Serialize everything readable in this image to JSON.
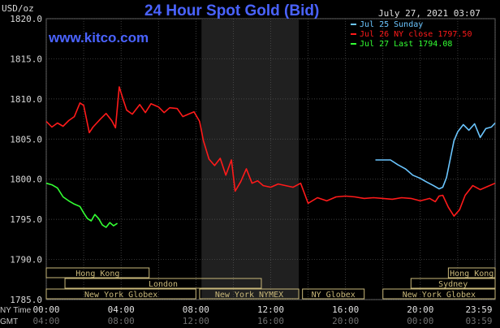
{
  "header": {
    "units_label": "USD/oz",
    "title": "24 Hour Spot Gold (Bid)",
    "date": "July 27, 2021 03:07",
    "website": "www.kitco.com"
  },
  "legend": [
    {
      "label": "Jul 25 Sunday",
      "color": "#6bc6ff"
    },
    {
      "label": "Jul 26 NY close 1797.50",
      "color": "#ff1a1a"
    },
    {
      "label": "Jul 27 Last 1794.08",
      "color": "#33ff33"
    }
  ],
  "axis_labels": {
    "ny_time": "NY Time",
    "gmt": "GMT"
  },
  "markets": [
    {
      "label": "Hong Kong",
      "row": 0,
      "from_h": 0,
      "to_h": 5.5
    },
    {
      "label": "Hong Kong",
      "row": 0,
      "from_h": 21.5,
      "to_h": 24
    },
    {
      "label": "London",
      "row": 1,
      "from_h": 1,
      "to_h": 11.5
    },
    {
      "label": "Sydney",
      "row": 1,
      "from_h": 19.5,
      "to_h": 24
    },
    {
      "label": "New York Globex",
      "row": 2,
      "from_h": 0,
      "to_h": 8
    },
    {
      "label": "New York NYMEX",
      "row": 2,
      "from_h": 8.2,
      "to_h": 13.5
    },
    {
      "label": "NY Globex",
      "row": 2,
      "from_h": 13.7,
      "to_h": 17
    },
    {
      "label": "New York Globex",
      "row": 2,
      "from_h": 18,
      "to_h": 24
    }
  ],
  "chart_data": {
    "type": "line",
    "title": "24 Hour Spot Gold (Bid)",
    "ylabel": "USD/oz",
    "xlabel": "NY Time",
    "ylim": [
      1785,
      1820
    ],
    "xlim_hours": [
      0,
      24
    ],
    "y_ticks": [
      "1820.0",
      "1815.0",
      "1810.0",
      "1805.0",
      "1800.0",
      "1795.0",
      "1790.0",
      "1785.0"
    ],
    "y_tick_values": [
      1820,
      1815,
      1810,
      1805,
      1800,
      1795,
      1790,
      1785
    ],
    "x_ticks": [
      {
        "hour": 0,
        "ny": "00:00",
        "gmt": "04:00"
      },
      {
        "hour": 4,
        "ny": "04:00",
        "gmt": "08:00"
      },
      {
        "hour": 8,
        "ny": "08:00",
        "gmt": "12:00"
      },
      {
        "hour": 12,
        "ny": "12:00",
        "gmt": "16:00"
      },
      {
        "hour": 16,
        "ny": "16:00",
        "gmt": "20:00"
      },
      {
        "hour": 20,
        "ny": "20:00",
        "gmt": "00:00"
      },
      {
        "hour": 24,
        "ny": "23:59",
        "gmt": "03:59"
      }
    ],
    "shaded_region_hours": [
      8.3,
      13.5
    ],
    "grid": true,
    "series": [
      {
        "name": "Jul 25 Sunday",
        "color": "#6bc6ff",
        "hours": [
          17.6,
          18.4,
          18.8,
          19.2,
          19.6,
          20.0,
          20.3,
          20.7,
          21.0,
          21.2,
          21.4,
          21.6,
          21.8,
          22.0,
          22.3,
          22.6,
          22.9,
          23.2,
          23.5,
          23.8,
          24.0
        ],
        "values": [
          1802.4,
          1802.4,
          1801.8,
          1801.3,
          1800.5,
          1800.1,
          1799.7,
          1799.2,
          1798.8,
          1799.0,
          1800.2,
          1802.5,
          1804.8,
          1805.9,
          1806.8,
          1806.1,
          1806.9,
          1805.2,
          1806.3,
          1806.5,
          1807.0
        ]
      },
      {
        "name": "Jul 26 NY close 1797.50",
        "color": "#ff1a1a",
        "hours": [
          0.0,
          0.3,
          0.6,
          0.9,
          1.2,
          1.5,
          1.8,
          2.0,
          2.3,
          2.5,
          2.7,
          2.9,
          3.2,
          3.5,
          3.7,
          3.9,
          4.1,
          4.3,
          4.6,
          5.0,
          5.3,
          5.6,
          6.0,
          6.3,
          6.6,
          7.0,
          7.3,
          7.6,
          7.9,
          8.2,
          8.4,
          8.7,
          9.0,
          9.3,
          9.6,
          9.9,
          10.1,
          10.4,
          10.7,
          11.0,
          11.3,
          11.6,
          12.0,
          12.4,
          12.8,
          13.2,
          13.6,
          14.0,
          14.5,
          15.0,
          15.5,
          16.0,
          16.5,
          17.0,
          17.5,
          18.0,
          18.5,
          19.0,
          19.5,
          20.0,
          20.5,
          20.8,
          21.0,
          21.2,
          21.5,
          21.8,
          22.1,
          22.4,
          22.8,
          23.2,
          23.6,
          24.0
        ],
        "values": [
          1807.2,
          1806.5,
          1807.0,
          1806.6,
          1807.3,
          1807.8,
          1809.5,
          1809.2,
          1805.8,
          1806.5,
          1807.0,
          1807.5,
          1808.2,
          1807.3,
          1806.4,
          1811.5,
          1810.0,
          1808.6,
          1808.1,
          1809.3,
          1808.3,
          1809.4,
          1809.0,
          1808.3,
          1808.9,
          1808.8,
          1807.8,
          1808.1,
          1808.4,
          1807.2,
          1804.8,
          1802.5,
          1801.7,
          1802.6,
          1800.5,
          1802.4,
          1798.5,
          1799.7,
          1801.3,
          1799.5,
          1799.8,
          1799.2,
          1799.0,
          1799.4,
          1799.2,
          1799.0,
          1799.5,
          1797.0,
          1797.7,
          1797.3,
          1797.8,
          1797.9,
          1797.8,
          1797.6,
          1797.7,
          1797.6,
          1797.5,
          1797.7,
          1797.6,
          1797.3,
          1797.6,
          1797.2,
          1797.9,
          1798.0,
          1796.5,
          1795.4,
          1796.2,
          1798.0,
          1799.2,
          1798.7,
          1799.1,
          1799.5
        ]
      },
      {
        "name": "Jul 27 Last 1794.08",
        "color": "#33ff33",
        "hours": [
          0.0,
          0.3,
          0.6,
          0.9,
          1.2,
          1.5,
          1.8,
          2.0,
          2.2,
          2.4,
          2.6,
          2.8,
          3.0,
          3.2,
          3.4,
          3.6,
          3.8
        ],
        "values": [
          1799.5,
          1799.3,
          1798.9,
          1797.8,
          1797.3,
          1796.9,
          1796.6,
          1795.8,
          1795.1,
          1794.8,
          1795.6,
          1795.1,
          1794.3,
          1794.0,
          1794.6,
          1794.2,
          1794.5
        ]
      }
    ]
  }
}
